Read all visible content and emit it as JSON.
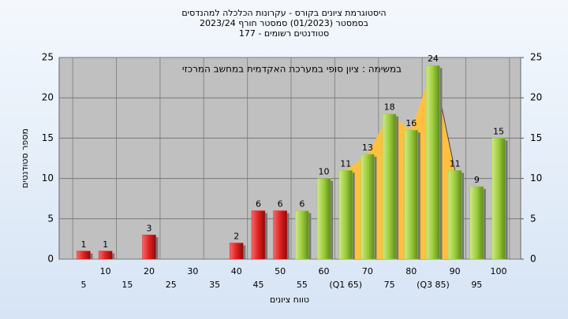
{
  "chart_data": {
    "type": "bar",
    "title": [
      "היסטוגרמת ציונים בקורס - עקרונות הכלכלה למהנדסים",
      "בסמסטר (01/2023) סמסטר חורף 2023/24",
      "סטודנטים רשומים - 177"
    ],
    "annotation": "במשימה : ציון סופי במערכת האקדמית במחשב המרכזי",
    "x_label": "טווח ציונים",
    "y_label": "מספר סטודנטים",
    "categories": [
      "5",
      "10",
      "15",
      "20",
      "25",
      "30",
      "35",
      "40",
      "45",
      "50",
      "55",
      "60",
      "(Q1 65)",
      "70",
      "75",
      "80",
      "(Q3 85)",
      "90",
      "95",
      "100"
    ],
    "values": [
      1,
      1,
      0,
      3,
      0,
      0,
      0,
      2,
      6,
      6,
      6,
      10,
      11,
      13,
      18,
      16,
      24,
      11,
      9,
      15
    ],
    "colors": [
      "#e02020",
      "#e02020",
      "#e02020",
      "#e02020",
      "#e02020",
      "#e02020",
      "#e02020",
      "#e02020",
      "#e02020",
      "#e02020",
      "#9ccc3c",
      "#9ccc3c",
      "#9ccc3c",
      "#9ccc3c",
      "#9ccc3c",
      "#9ccc3c",
      "#9ccc3c",
      "#9ccc3c",
      "#9ccc3c",
      "#9ccc3c"
    ],
    "ylim": [
      0,
      25
    ],
    "yticks": [
      0,
      5,
      10,
      15,
      20,
      25
    ],
    "y2lim": [
      0,
      25
    ],
    "y2ticks": [
      0,
      5,
      10,
      15,
      20,
      25
    ],
    "grid": true
  }
}
